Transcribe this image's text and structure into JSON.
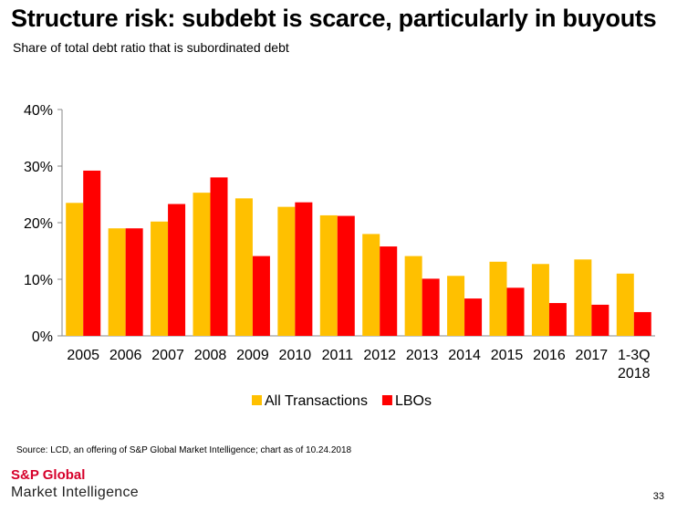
{
  "title": "Structure risk: subdebt is scarce, particularly in buyouts",
  "subtitle": "Share of total debt ratio that is subordinated debt",
  "source": "Source: LCD, an offering of S&P Global Market Intelligence; chart as of 10.24.2018",
  "logo": {
    "line1": "S&P Global",
    "line2": "Market Intelligence"
  },
  "page_number": "33",
  "chart_data": {
    "type": "bar",
    "categories": [
      "2005",
      "2006",
      "2007",
      "2008",
      "2009",
      "2010",
      "2011",
      "2012",
      "2013",
      "2014",
      "2015",
      "2016",
      "2017",
      "1-3Q 2018"
    ],
    "series": [
      {
        "name": "All Transactions",
        "color": "#ffc000",
        "values": [
          23.5,
          19,
          20.2,
          25.3,
          24.3,
          22.8,
          21.3,
          18,
          14.1,
          10.6,
          13.1,
          12.7,
          13.5,
          11
        ]
      },
      {
        "name": "LBOs",
        "color": "#ff0000",
        "values": [
          29.2,
          19,
          23.3,
          28,
          14.1,
          23.6,
          21.2,
          15.8,
          10.1,
          6.6,
          8.5,
          5.8,
          5.5,
          4.2
        ]
      }
    ],
    "ylim": [
      0,
      40
    ],
    "yticks": [
      "0%",
      "10%",
      "20%",
      "30%",
      "40%"
    ],
    "ytick_values": [
      0,
      10,
      20,
      30,
      40
    ],
    "legend": "bottom-center",
    "grid": false
  }
}
